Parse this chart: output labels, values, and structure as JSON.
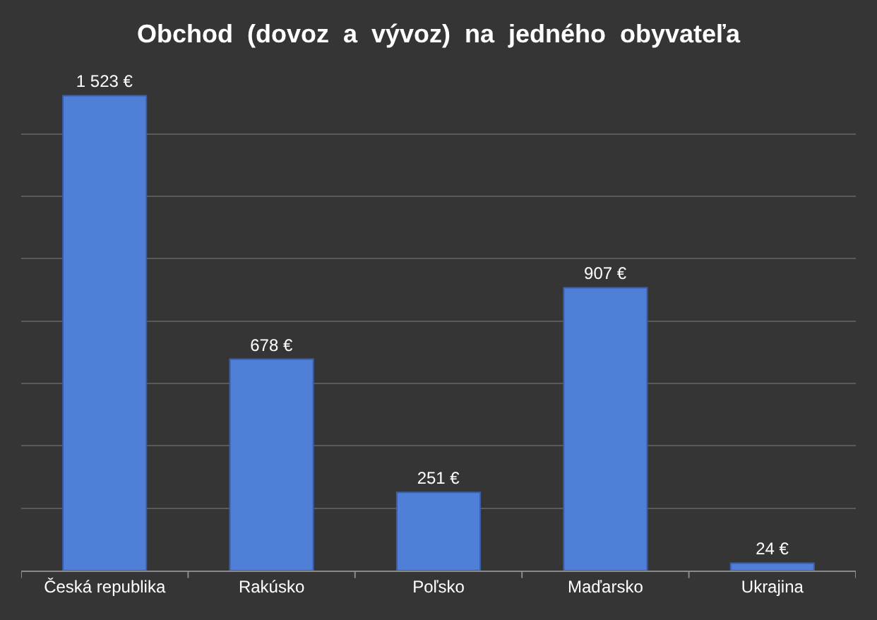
{
  "chart_data": {
    "type": "bar",
    "title": "Obchod  (dovoz  a  vývoz)  na  jedného  obyvateľa",
    "categories": [
      "Česká republika",
      "Rakúsko",
      "Poľsko",
      "Maďarsko",
      "Ukrajina"
    ],
    "values": [
      1523,
      678,
      251,
      907,
      24
    ],
    "value_labels": [
      "1 523 €",
      "678 €",
      "251 €",
      "907 €",
      "24 €"
    ],
    "color": "#4f7fd6",
    "tick_labels": "x",
    "grid": "y"
  }
}
